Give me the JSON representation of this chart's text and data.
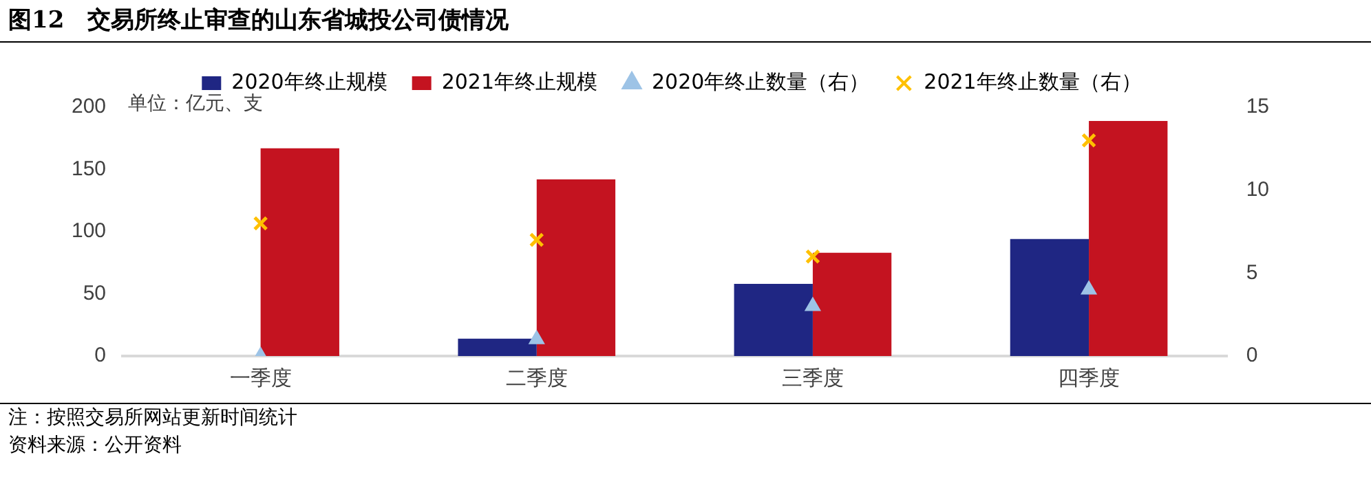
{
  "chart_data": {
    "type": "bar",
    "title": "图12　交易所终止审查的山东省城投公司债情况",
    "categories": [
      "一季度",
      "二季度",
      "三季度",
      "四季度"
    ],
    "series": [
      {
        "name": "2020年终止规模",
        "color": "#1f2683",
        "values": [
          0,
          14,
          58,
          94
        ]
      },
      {
        "name": "2021年终止规模",
        "color": "#c41320",
        "values": [
          167,
          142,
          83,
          189
        ]
      },
      {
        "name": "2020年终止数量（右）",
        "type": "scatter",
        "marker": "triangle",
        "axis": "y2",
        "color": "#9dc3e6",
        "values": [
          0,
          1,
          3,
          4
        ]
      },
      {
        "name": "2021年终止数量（右）",
        "type": "scatter",
        "marker": "cross",
        "axis": "y2",
        "color": "#ffc000",
        "values": [
          8,
          7,
          6,
          13
        ]
      }
    ],
    "ylim": [
      0,
      200
    ],
    "yticks": [
      0,
      50,
      100,
      150,
      200
    ],
    "y2lim": [
      0,
      15
    ],
    "y2ticks": [
      0,
      5,
      10,
      15
    ],
    "grid": false,
    "legend": "top",
    "annotations": [
      "单位：亿元、支",
      "注：按照交易所网站更新时间统计",
      "资料来源：公开资料"
    ]
  }
}
